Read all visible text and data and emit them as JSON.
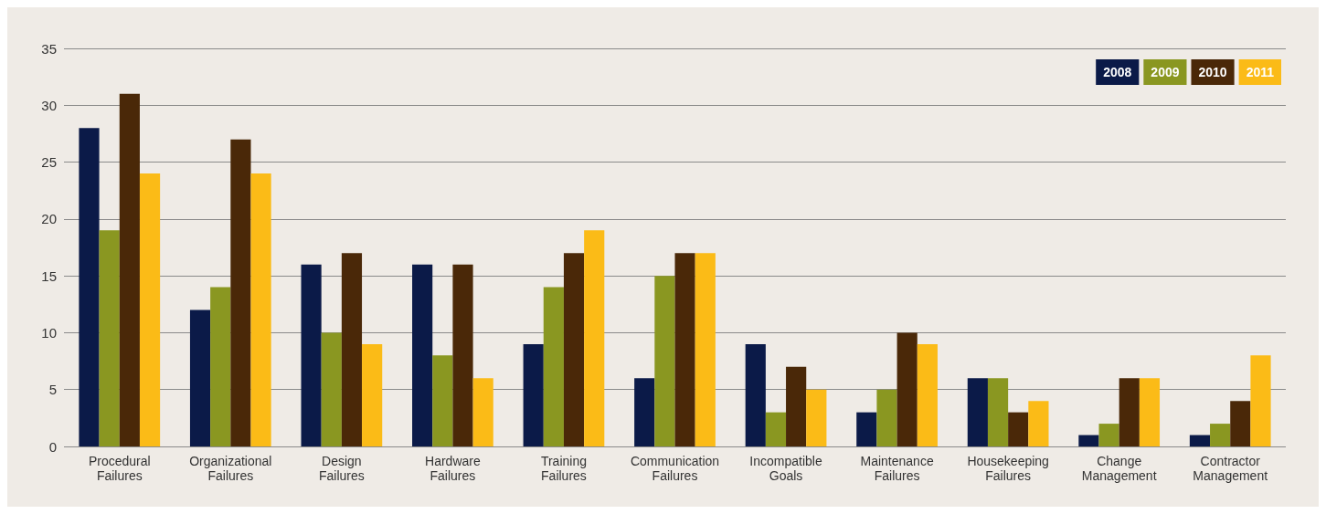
{
  "chart_data": {
    "type": "bar",
    "categories": [
      "Procedural Failures",
      "Organizational Failures",
      "Design Failures",
      "Hardware Failures",
      "Training Failures",
      "Communication Failures",
      "Incompatible Goals",
      "Maintenance Failures",
      "Housekeeping Failures",
      "Change Management",
      "Contractor Management"
    ],
    "series": [
      {
        "name": "2008",
        "color": "#0b1a48",
        "values": [
          28,
          12,
          16,
          16,
          9,
          6,
          9,
          3,
          6,
          1,
          1
        ]
      },
      {
        "name": "2009",
        "color": "#8a9721",
        "values": [
          19,
          14,
          10,
          8,
          14,
          15,
          3,
          5,
          6,
          2,
          2
        ]
      },
      {
        "name": "2010",
        "color": "#4a2808",
        "values": [
          31,
          27,
          17,
          16,
          17,
          17,
          7,
          10,
          3,
          6,
          4
        ]
      },
      {
        "name": "2011",
        "color": "#fbbb17",
        "values": [
          24,
          24,
          9,
          6,
          19,
          17,
          5,
          9,
          4,
          6,
          8
        ]
      }
    ],
    "ylim": [
      0,
      35
    ],
    "yticks": [
      0,
      5,
      10,
      15,
      20,
      25,
      30,
      35
    ],
    "grid": "y",
    "legend": "top right"
  }
}
